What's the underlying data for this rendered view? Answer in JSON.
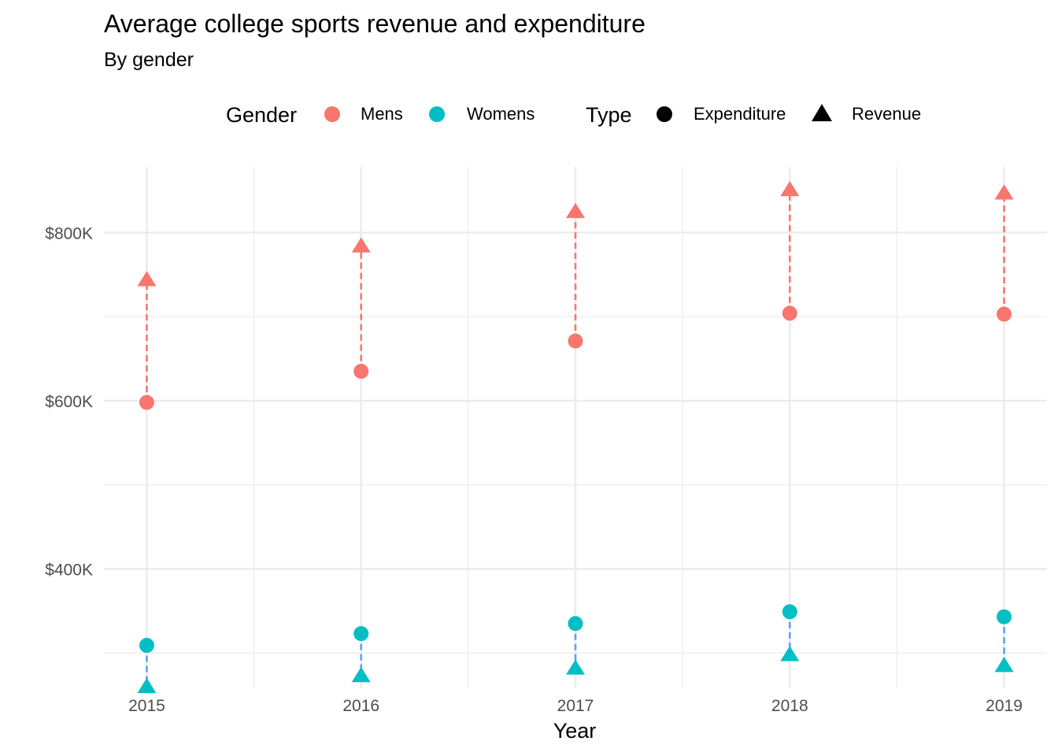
{
  "chart_data": {
    "type": "scatter",
    "title": "Average college sports revenue and expenditure",
    "subtitle": "By gender",
    "xlabel": "Year",
    "ylabel": "",
    "x": [
      2015,
      2016,
      2017,
      2018,
      2019
    ],
    "xlim": [
      2014.8,
      2019.2
    ],
    "ylim": [
      258000,
      878000
    ],
    "y_ticks": [
      400000,
      600000,
      800000
    ],
    "y_tick_labels": [
      "$400K",
      "$600K",
      "$800K"
    ],
    "y_minor_ticks": [
      300000,
      500000,
      700000
    ],
    "grid": true,
    "legend": {
      "position": "top",
      "gender_title": "Gender",
      "gender_entries": [
        "Mens",
        "Womens"
      ],
      "type_title": "Type",
      "type_entries": [
        "Expenditure",
        "Revenue"
      ]
    },
    "colors": {
      "mens": "#F8766D",
      "womens": "#00BFC4",
      "mens_segment": "#F8766D",
      "womens_segment": "#619CFF",
      "grid": "#EBEBEB",
      "type_key": "#000000"
    },
    "series": [
      {
        "name": "Mens",
        "type": "Expenditure",
        "shape": "circle",
        "values": [
          598000,
          635000,
          671000,
          704000,
          703000
        ]
      },
      {
        "name": "Mens",
        "type": "Revenue",
        "shape": "triangle",
        "values": [
          744000,
          784000,
          825000,
          851000,
          847000
        ]
      },
      {
        "name": "Womens",
        "type": "Expenditure",
        "shape": "circle",
        "values": [
          309000,
          323000,
          335000,
          349000,
          343000
        ]
      },
      {
        "name": "Womens",
        "type": "Revenue",
        "shape": "triangle",
        "values": [
          260000,
          273000,
          282000,
          298000,
          285000
        ]
      }
    ]
  }
}
